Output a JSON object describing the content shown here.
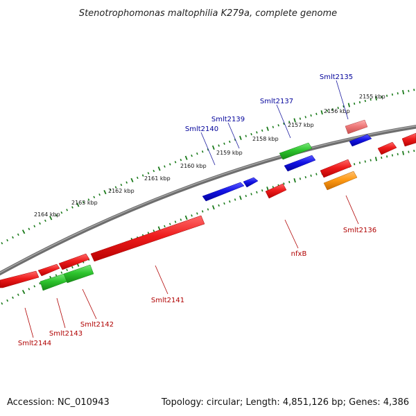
{
  "title": "Stenotrophomonas maltophilia K279a, complete genome",
  "footer": {
    "accession": "Accession: NC_010943",
    "topology": "Topology: circular; Length: 4,851,126 bp; Genes: 4,386"
  },
  "colors": {
    "backbone": "#8a8a8a",
    "tick_major": "#1a7a1a",
    "label_top": "#00009a",
    "label_bottom": "#b00000",
    "gene_red": "#ee1c1c",
    "gene_blue": "#1414e6",
    "gene_green": "#2ec42e",
    "gene_orange": "#ff9a14",
    "gene_pink": "#ee7a7a"
  },
  "scale_labels": [
    "2164 kbp",
    "2163 kbp",
    "2162 kbp",
    "2161 kbp",
    "2160 kbp",
    "2159 kbp",
    "2158 kbp",
    "2157 kbp",
    "2156 kbp",
    "2155 kbp"
  ],
  "gene_labels_top": [
    "Smlt2140",
    "Smlt2139",
    "Smlt2137",
    "Smlt2135"
  ],
  "gene_labels_bottom": [
    "Smlt2144",
    "Smlt2143",
    "Smlt2142",
    "Smlt2141",
    "nfxB",
    "Smlt2136"
  ]
}
